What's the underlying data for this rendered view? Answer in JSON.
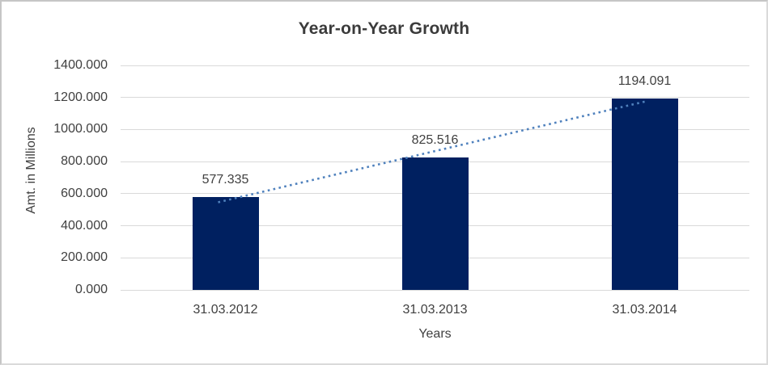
{
  "chart_data": {
    "type": "bar",
    "title": "Year-on-Year Growth",
    "categories": [
      "31.03.2012",
      "31.03.2013",
      "31.03.2014"
    ],
    "values": [
      577.335,
      825.516,
      1194.091
    ],
    "data_labels": [
      "577.335",
      "825.516",
      "1194.091"
    ],
    "xlabel": "Years",
    "ylabel": "Amt. in Millions",
    "ylim": [
      0,
      1400
    ],
    "ytick_step": 200,
    "ytick_labels": [
      "0.000",
      "200.000",
      "400.000",
      "600.000",
      "800.000",
      "1000.000",
      "1200.000",
      "1400.000"
    ],
    "grid": true,
    "legend": "none",
    "trendline": {
      "type": "linear",
      "style": "dotted"
    }
  },
  "colors": {
    "bar": "#002060",
    "trendline": "#4f81bd",
    "gridline": "#d9d9d9",
    "title_text": "#3b3b3b",
    "axis_text": "#404040",
    "background": "#ffffff",
    "border": "#c6c6c6",
    "border_light": "#dadada"
  }
}
